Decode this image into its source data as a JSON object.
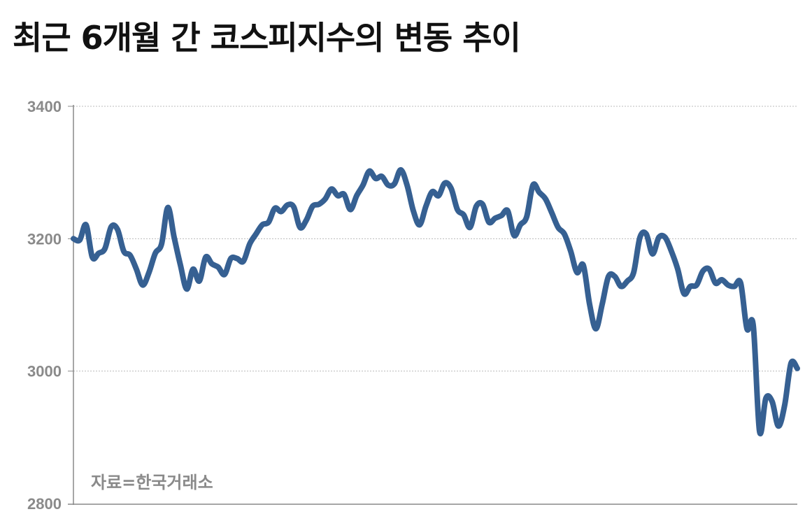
{
  "chart_data": {
    "type": "line",
    "title": "최근 6개월 간 코스피지수의 변동 추이",
    "xlabel": "",
    "ylabel": "",
    "ylim": [
      2800,
      3400
    ],
    "yticks": [
      "3400",
      "3200",
      "3000",
      "2800"
    ],
    "grid": true,
    "line_color": "#366092",
    "source_note": "자료=한국거래소",
    "values": [
      3200,
      3198,
      3221,
      3172,
      3178,
      3185,
      3218,
      3214,
      3181,
      3175,
      3154,
      3130,
      3149,
      3178,
      3192,
      3247,
      3202,
      3160,
      3124,
      3154,
      3136,
      3172,
      3162,
      3157,
      3146,
      3170,
      3170,
      3166,
      3192,
      3207,
      3221,
      3225,
      3246,
      3241,
      3251,
      3248,
      3217,
      3228,
      3249,
      3252,
      3260,
      3275,
      3265,
      3267,
      3244,
      3265,
      3281,
      3302,
      3291,
      3294,
      3281,
      3283,
      3304,
      3281,
      3242,
      3221,
      3249,
      3271,
      3265,
      3284,
      3276,
      3244,
      3236,
      3217,
      3249,
      3252,
      3225,
      3231,
      3235,
      3242,
      3205,
      3221,
      3233,
      3281,
      3270,
      3260,
      3239,
      3217,
      3207,
      3181,
      3149,
      3160,
      3101,
      3064,
      3101,
      3143,
      3143,
      3128,
      3136,
      3149,
      3202,
      3207,
      3177,
      3202,
      3202,
      3181,
      3154,
      3117,
      3128,
      3130,
      3151,
      3154,
      3133,
      3138,
      3130,
      3128,
      3133,
      3064,
      3069,
      2909,
      2959,
      2954,
      2917,
      2949,
      3012,
      3004
    ]
  }
}
